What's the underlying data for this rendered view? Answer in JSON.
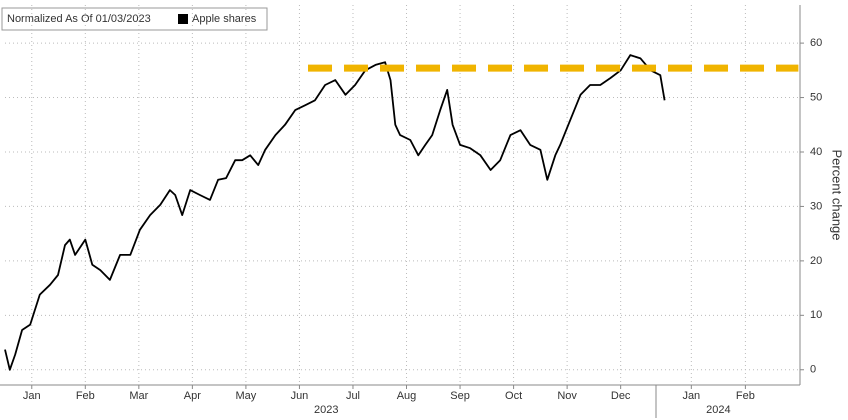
{
  "chart_data": {
    "type": "line",
    "legend_title": "Normalized As Of 01/03/2023",
    "y_label": "Percent change",
    "years": [
      "2023",
      "2024"
    ],
    "xlim": [
      0,
      14.85
    ],
    "xticks": [
      {
        "value": 0.5,
        "label": "Jan"
      },
      {
        "value": 1.5,
        "label": "Feb"
      },
      {
        "value": 2.5,
        "label": "Mar"
      },
      {
        "value": 3.5,
        "label": "Apr"
      },
      {
        "value": 4.5,
        "label": "May"
      },
      {
        "value": 5.5,
        "label": "Jun"
      },
      {
        "value": 6.5,
        "label": "Jul"
      },
      {
        "value": 7.5,
        "label": "Aug"
      },
      {
        "value": 8.5,
        "label": "Sep"
      },
      {
        "value": 9.5,
        "label": "Oct"
      },
      {
        "value": 10.5,
        "label": "Nov"
      },
      {
        "value": 11.5,
        "label": "Dec"
      },
      {
        "value": 12.82,
        "label": "Jan"
      },
      {
        "value": 13.83,
        "label": "Feb"
      }
    ],
    "ylim": [
      -2.8,
      67
    ],
    "yticks": [
      0,
      10,
      20,
      30,
      40,
      50,
      60
    ],
    "grid": true,
    "series": [
      {
        "name": "Apple shares",
        "color": "#000000",
        "x": [
          0,
          0.09,
          0.19,
          0.32,
          0.47,
          0.65,
          0.84,
          0.99,
          1.12,
          1.21,
          1.31,
          1.5,
          1.63,
          1.78,
          1.96,
          2.15,
          2.34,
          2.52,
          2.71,
          2.9,
          3.08,
          3.18,
          3.31,
          3.46,
          3.64,
          3.83,
          3.98,
          4.13,
          4.3,
          4.43,
          4.58,
          4.73,
          4.86,
          5.05,
          5.23,
          5.42,
          5.61,
          5.79,
          5.98,
          6.17,
          6.36,
          6.54,
          6.73,
          6.92,
          7.1,
          7.2,
          7.29,
          7.38,
          7.57,
          7.72,
          7.85,
          7.98,
          8.13,
          8.26,
          8.36,
          8.5,
          8.69,
          8.88,
          9.07,
          9.25,
          9.44,
          9.63,
          9.81,
          10.0,
          10.13,
          10.28,
          10.37,
          10.56,
          10.75,
          10.93,
          11.12,
          11.31,
          11.5,
          11.68,
          11.87,
          12.06,
          12.24,
          12.32
        ],
        "values": [
          3.7,
          0,
          2.8,
          7.3,
          8.3,
          13.8,
          15.6,
          17.4,
          22.9,
          23.9,
          21.1,
          23.9,
          19.3,
          18.3,
          16.5,
          21.1,
          21.1,
          25.7,
          28.4,
          30.3,
          33.0,
          32.1,
          28.4,
          33.0,
          32.1,
          31.2,
          34.9,
          35.2,
          38.5,
          38.5,
          39.4,
          37.6,
          40.4,
          43.1,
          45.0,
          47.7,
          48.6,
          49.5,
          52.3,
          53.2,
          50.5,
          52.3,
          55.0,
          56.0,
          56.5,
          53.2,
          45.0,
          43.1,
          42.2,
          39.4,
          41.3,
          43.1,
          47.7,
          51.4,
          45.0,
          41.3,
          40.7,
          39.4,
          36.7,
          38.5,
          43.1,
          44.0,
          41.3,
          40.4,
          34.9,
          39.4,
          41.3,
          45.9,
          50.5,
          52.3,
          52.3,
          53.6,
          55.0,
          57.8,
          57.2,
          55.0,
          54.1,
          49.5
        ]
      }
    ],
    "reference_line": {
      "value": 55.4,
      "x": [
        5.66,
        14.82
      ],
      "color": "#f0b400"
    }
  }
}
